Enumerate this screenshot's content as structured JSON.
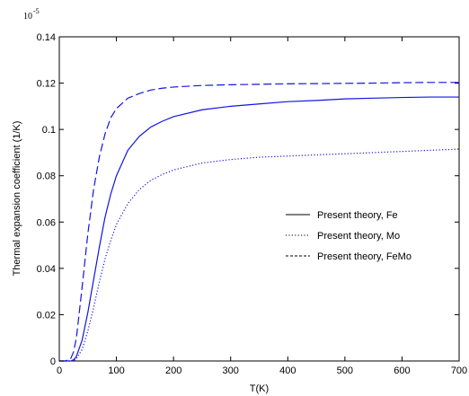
{
  "chart_data": {
    "type": "line",
    "title": "",
    "xlabel": "T(K)",
    "ylabel": "Thermal expansion coefficient (1/K)",
    "y_multiplier": "10",
    "y_multiplier_exponent": "-5",
    "xlim": [
      0,
      700
    ],
    "ylim": [
      0,
      0.14
    ],
    "xticks": [
      0,
      100,
      200,
      300,
      400,
      500,
      600,
      700
    ],
    "yticks": [
      0,
      0.02,
      0.04,
      0.06,
      0.08,
      0.1,
      0.12,
      0.14
    ],
    "xtick_labels": [
      "0",
      "100",
      "200",
      "300",
      "400",
      "500",
      "600",
      "700"
    ],
    "ytick_labels": [
      "0",
      "0.02",
      "0.04",
      "0.06",
      "0.08",
      "0.1",
      "0.12",
      "0.14"
    ],
    "grid": false,
    "legend_position": "center-right",
    "line_color": "#1414e0",
    "x": [
      0,
      10,
      20,
      25,
      30,
      40,
      50,
      60,
      70,
      80,
      90,
      100,
      120,
      140,
      160,
      180,
      200,
      250,
      300,
      350,
      400,
      450,
      500,
      550,
      600,
      650,
      700
    ],
    "series": [
      {
        "name": "Present theory, Fe",
        "style": "solid",
        "values": [
          0,
          0,
          0,
          0.0005,
          0.002,
          0.009,
          0.021,
          0.035,
          0.049,
          0.062,
          0.072,
          0.08,
          0.091,
          0.097,
          0.101,
          0.1035,
          0.1055,
          0.1085,
          0.11,
          0.111,
          0.112,
          0.1125,
          0.1132,
          0.1135,
          0.1138,
          0.114,
          0.114
        ]
      },
      {
        "name": "Present theory, Mo",
        "style": "dotted",
        "values": [
          0,
          0,
          0,
          0,
          0.001,
          0.005,
          0.013,
          0.023,
          0.034,
          0.044,
          0.052,
          0.059,
          0.068,
          0.074,
          0.078,
          0.0805,
          0.0825,
          0.0855,
          0.087,
          0.088,
          0.0885,
          0.089,
          0.0895,
          0.09,
          0.0905,
          0.091,
          0.0915
        ]
      },
      {
        "name": "Present theory, FeMo",
        "style": "dashed",
        "values": [
          0,
          0,
          0.001,
          0.004,
          0.01,
          0.032,
          0.055,
          0.074,
          0.088,
          0.098,
          0.105,
          0.109,
          0.1135,
          0.1155,
          0.117,
          0.1178,
          0.1183,
          0.119,
          0.1193,
          0.1195,
          0.1197,
          0.1198,
          0.1199,
          0.12,
          0.1202,
          0.1203,
          0.1203
        ]
      }
    ]
  }
}
